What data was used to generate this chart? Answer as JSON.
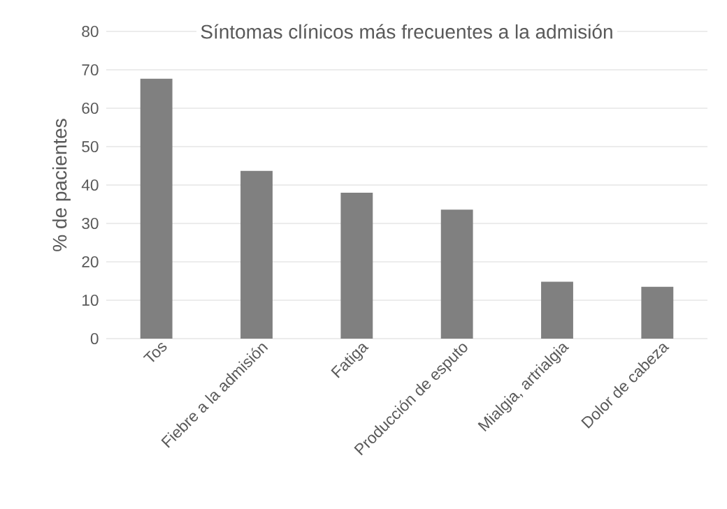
{
  "chart_data": {
    "type": "bar",
    "title": "Síntomas clínicos más frecuentes a la admisión",
    "ylabel": "% de pacientes",
    "categories": [
      "Tos",
      "Fiebre a la admisión",
      "Fatiga",
      "Producción de esputo",
      "Mialgia, artrialgia",
      "Dolor de cabeza"
    ],
    "values": [
      67.7,
      43.7,
      38.0,
      33.6,
      14.8,
      13.5
    ],
    "color": "#808080",
    "ylim": [
      0,
      80
    ],
    "yticks": [
      0,
      10,
      20,
      30,
      40,
      50,
      60,
      70,
      80
    ],
    "grid": "y"
  }
}
